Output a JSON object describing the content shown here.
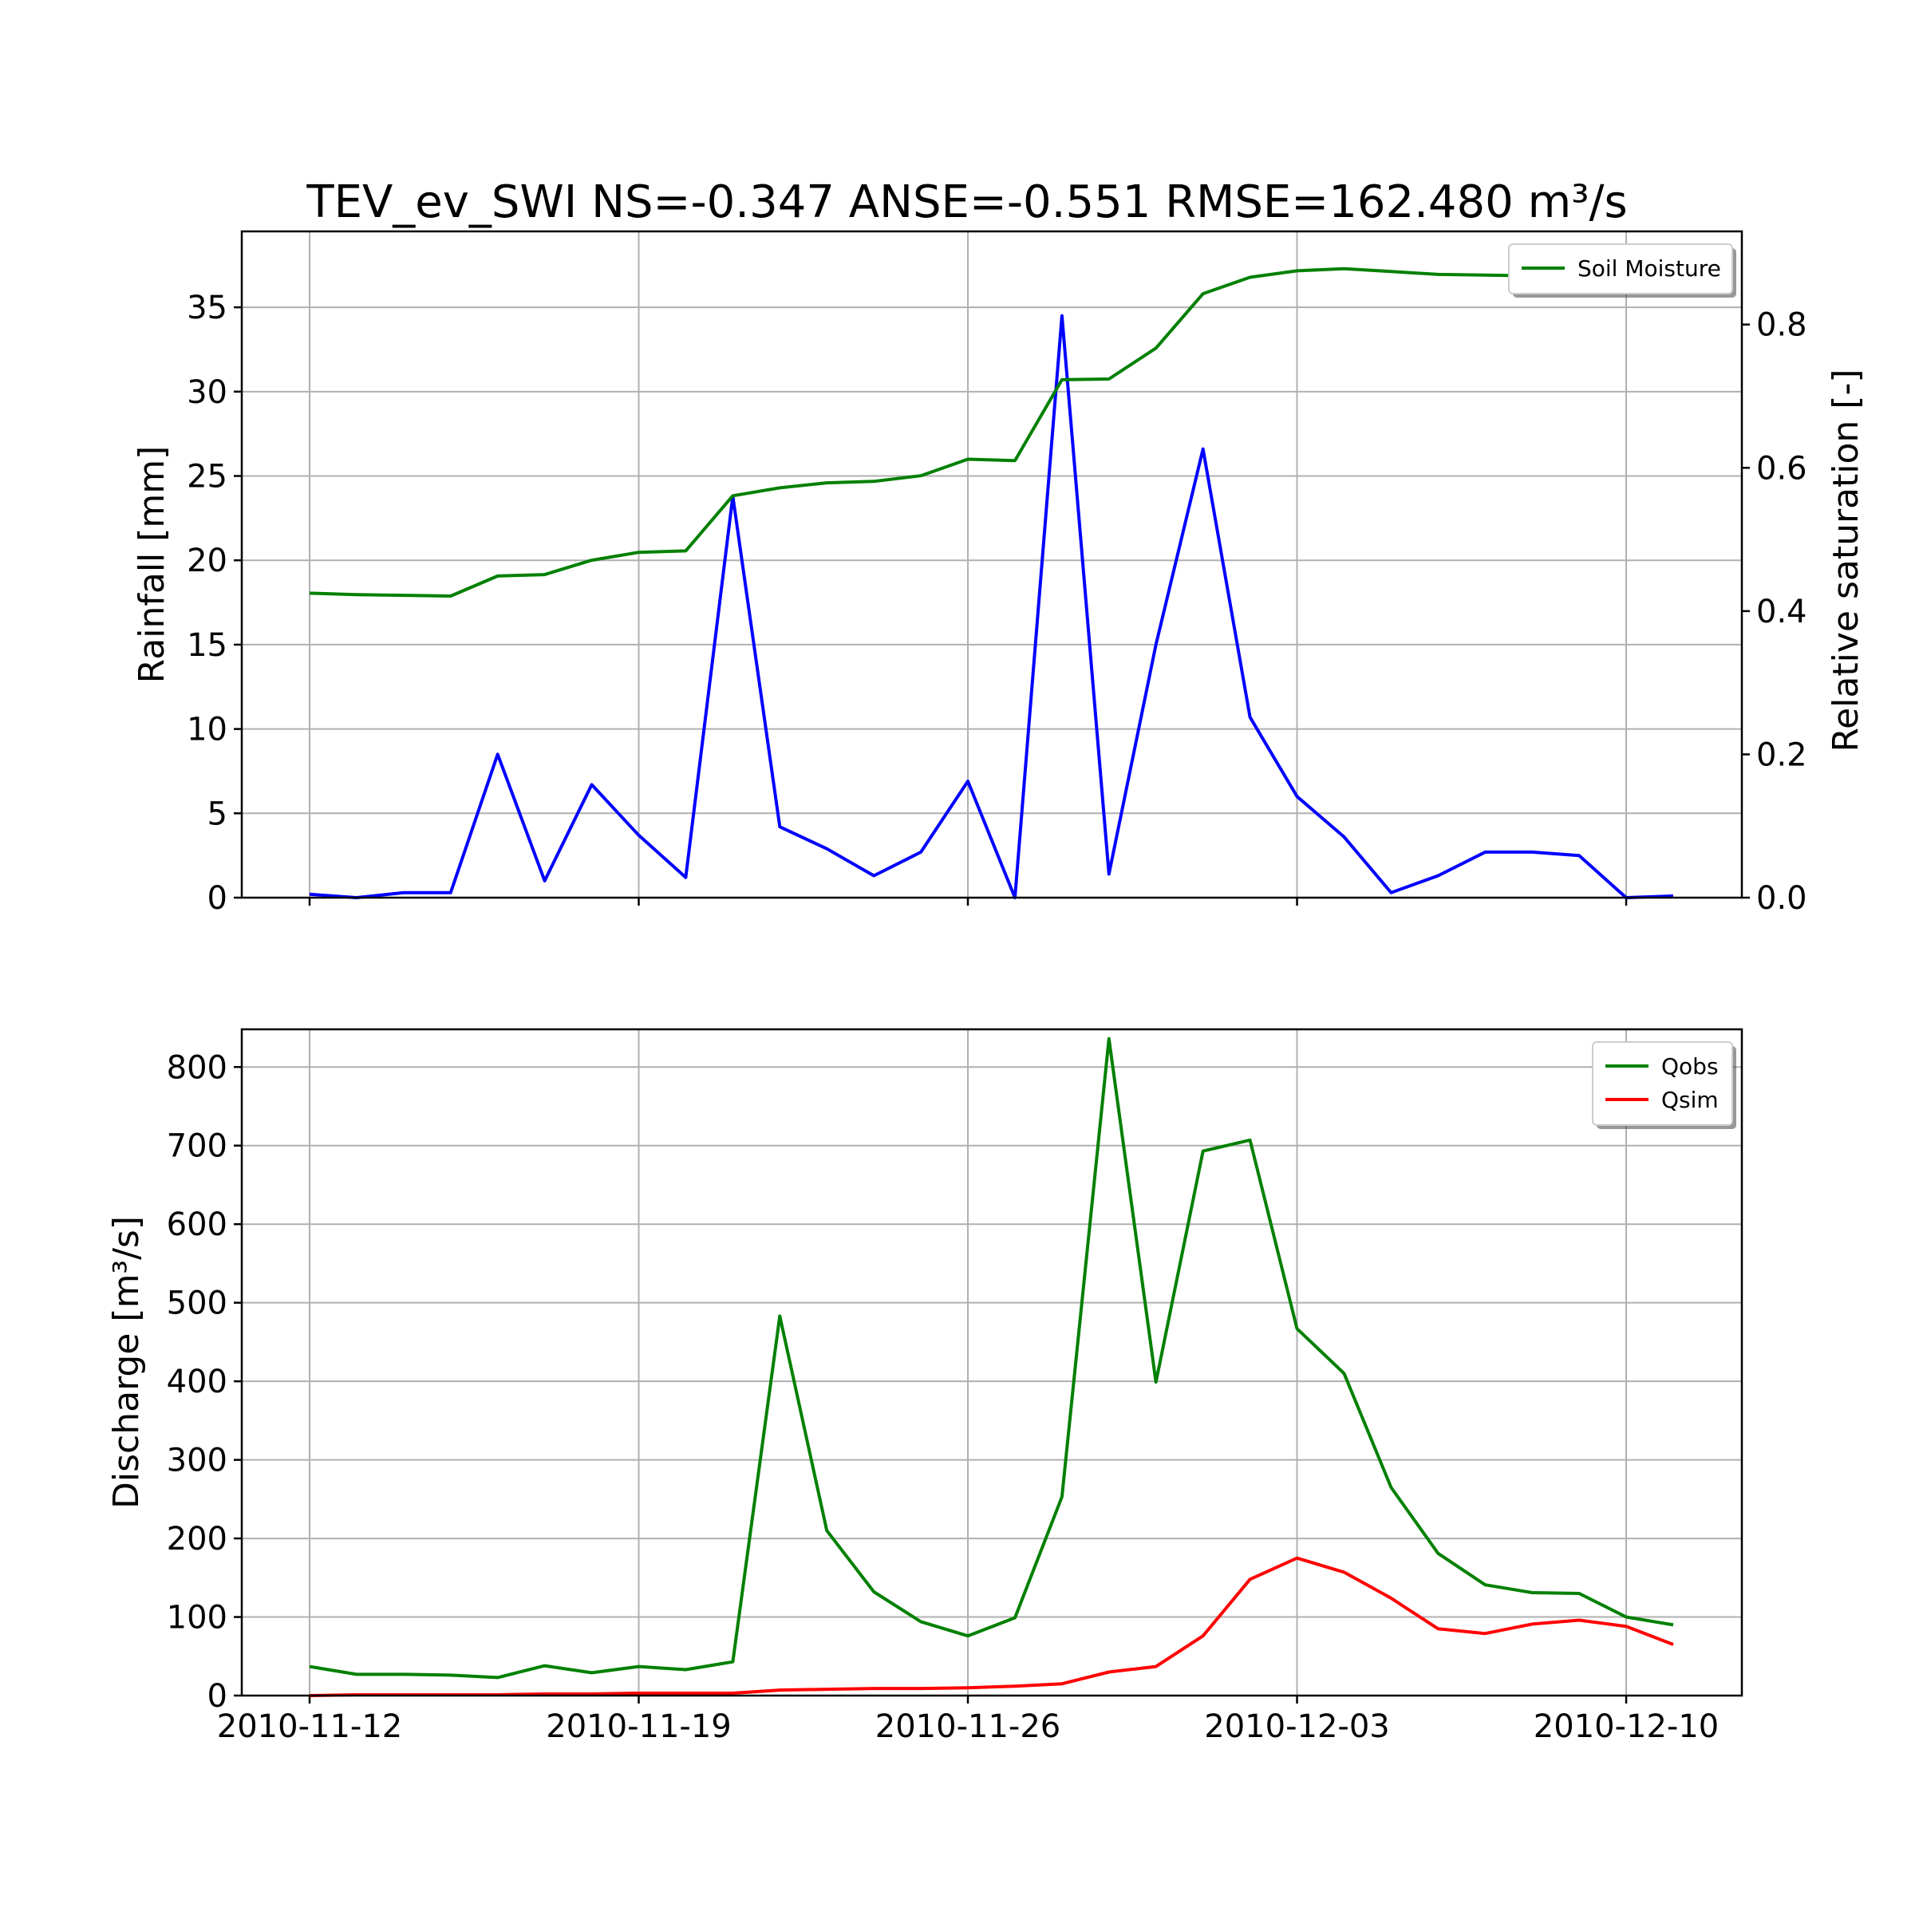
{
  "chart_data": {
    "title": "TEV_ev_SWI NS=-0.347 ANSE=-0.551 RMSE=162.480 m³/s",
    "x_dates": [
      "2010-11-12",
      "2010-11-13",
      "2010-11-14",
      "2010-11-15",
      "2010-11-16",
      "2010-11-17",
      "2010-11-18",
      "2010-11-19",
      "2010-11-20",
      "2010-11-21",
      "2010-11-22",
      "2010-11-23",
      "2010-11-24",
      "2010-11-25",
      "2010-11-26",
      "2010-11-27",
      "2010-11-28",
      "2010-11-29",
      "2010-11-30",
      "2010-12-01",
      "2010-12-02",
      "2010-12-03",
      "2010-12-04",
      "2010-12-05",
      "2010-12-06",
      "2010-12-07",
      "2010-12-08",
      "2010-12-09",
      "2010-12-10",
      "2010-12-11"
    ],
    "x_tick_labels": [
      "2010-11-12",
      "2010-11-19",
      "2010-11-26",
      "2010-12-03",
      "2010-12-10"
    ],
    "panels": [
      {
        "type": "line",
        "ylabel": "Rainfall [mm]",
        "ylim": [
          0,
          39.5
        ],
        "yticks": [
          "0",
          "5",
          "10",
          "15",
          "20",
          "25",
          "30",
          "35"
        ],
        "y2label": "Relative saturation [-]",
        "y2lim": [
          0,
          0.93
        ],
        "y2ticks": [
          "0.0",
          "0.2",
          "0.4",
          "0.6",
          "0.8"
        ],
        "grid": true,
        "legend_position": "top-right",
        "series": [
          {
            "name": "",
            "axis": "left",
            "color": "#0000ff",
            "values": [
              0.2,
              0.0,
              0.3,
              0.3,
              8.5,
              1.0,
              6.7,
              3.7,
              1.2,
              23.8,
              4.2,
              2.9,
              1.3,
              2.7,
              6.9,
              0.0,
              34.5,
              1.4,
              15.0,
              26.6,
              10.7,
              6.0,
              3.6,
              0.3,
              1.3,
              2.7,
              2.7,
              2.5,
              0.0,
              0.1
            ]
          },
          {
            "name": "Soil Moisture",
            "axis": "right",
            "color": "#008000",
            "values": [
              0.425,
              0.423,
              0.422,
              0.421,
              0.449,
              0.451,
              0.471,
              0.482,
              0.484,
              0.561,
              0.572,
              0.579,
              0.581,
              0.589,
              0.612,
              0.61,
              0.723,
              0.724,
              0.767,
              0.843,
              0.866,
              0.875,
              0.878,
              0.874,
              0.87,
              0.869,
              0.868,
              null,
              null,
              null
            ]
          }
        ]
      },
      {
        "type": "line",
        "ylabel": "Discharge [m³/s]",
        "ylim": [
          0,
          848
        ],
        "yticks": [
          "0",
          "100",
          "200",
          "300",
          "400",
          "500",
          "600",
          "700",
          "800"
        ],
        "grid": true,
        "legend_position": "top-right",
        "series": [
          {
            "name": "Qobs",
            "axis": "left",
            "color": "#008000",
            "values": [
              37,
              27,
              27,
              26,
              23,
              38,
              29,
              37,
              33,
              43,
              483,
              210,
              132,
              94,
              76,
              99,
              253,
              836,
              399,
              693,
              707,
              467,
              410,
              265,
              181,
              141,
              131,
              130,
              100,
              90
            ]
          },
          {
            "name": "Qsim",
            "axis": "left",
            "color": "#ff0000",
            "values": [
              0,
              1,
              1,
              1,
              1,
              2,
              2,
              3,
              3,
              3,
              7,
              8,
              9,
              9,
              10,
              12,
              15,
              30,
              37,
              76,
              148,
              175,
              157,
              124,
              85,
              79,
              91,
              96,
              88,
              65
            ]
          }
        ]
      }
    ]
  }
}
